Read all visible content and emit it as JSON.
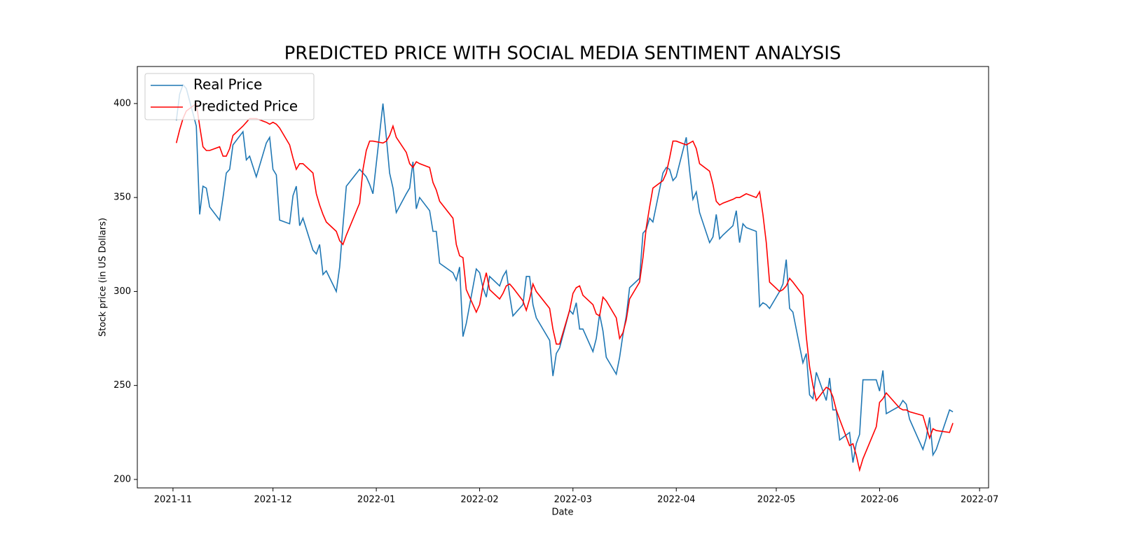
{
  "chart_data": {
    "type": "line",
    "title": "PREDICTED PRICE WITH SOCIAL MEDIA SENTIMENT ANALYSIS",
    "xlabel": "Date",
    "ylabel": "Stock price (in US Dollars)",
    "x": [
      1,
      2,
      3,
      4,
      7,
      8,
      9,
      10,
      11,
      14,
      15,
      16,
      17,
      18,
      21,
      22,
      23,
      25,
      28,
      29,
      30,
      31,
      32,
      35,
      36,
      37,
      38,
      39,
      42,
      43,
      44,
      45,
      46,
      49,
      50,
      51,
      52,
      56,
      57,
      58,
      59,
      60,
      63,
      64,
      65,
      66,
      67,
      70,
      71,
      72,
      73,
      74,
      77,
      78,
      79,
      80,
      84,
      85,
      86,
      87,
      88,
      91,
      92,
      93,
      94,
      95,
      98,
      99,
      100,
      101,
      102,
      105,
      106,
      107,
      108,
      109,
      113,
      114,
      115,
      116,
      119,
      120,
      121,
      122,
      123,
      126,
      127,
      128,
      129,
      130,
      133,
      134,
      135,
      136,
      137,
      140,
      141,
      142,
      143,
      144,
      147,
      148,
      149,
      150,
      151,
      154,
      155,
      156,
      157,
      158,
      161,
      162,
      163,
      164,
      165,
      168,
      169,
      170,
      171,
      172,
      175,
      176,
      177,
      178,
      179,
      182,
      183,
      184,
      185,
      186,
      189,
      190,
      191,
      192,
      193,
      196,
      197,
      198,
      199,
      200,
      203,
      204,
      205,
      206,
      207,
      211,
      212,
      213,
      214,
      218,
      219,
      220,
      221,
      225,
      226,
      227,
      228,
      229,
      233,
      234
    ],
    "series": [
      {
        "name": "Real Price",
        "color": "#1f77b4",
        "values": [
          391,
          405,
          410,
          408,
          388,
          341,
          356,
          355,
          345,
          338,
          350,
          363,
          365,
          378,
          385,
          370,
          372,
          361,
          379,
          382,
          365,
          362,
          338,
          336,
          351,
          356,
          335,
          339,
          322,
          320,
          325,
          309,
          311,
          300,
          313,
          335,
          356,
          365,
          363,
          361,
          357,
          352,
          400,
          382,
          363,
          355,
          342,
          352,
          355,
          369,
          344,
          350,
          343,
          332,
          332,
          315,
          310,
          306,
          313,
          276,
          283,
          312,
          310,
          302,
          297,
          308,
          303,
          308,
          311,
          298,
          287,
          293,
          308,
          308,
          293,
          286,
          274,
          255,
          267,
          270,
          290,
          288,
          294,
          280,
          280,
          268,
          275,
          288,
          279,
          265,
          256,
          265,
          277,
          287,
          302,
          307,
          331,
          333,
          339,
          337,
          363,
          366,
          365,
          359,
          361,
          382,
          364,
          349,
          353,
          342,
          326,
          329,
          341,
          328,
          330,
          335,
          343,
          326,
          336,
          334,
          332,
          292,
          294,
          293,
          291,
          300,
          304,
          317,
          291,
          289,
          262,
          267,
          245,
          243,
          257,
          242,
          254,
          237,
          237,
          221,
          225,
          209,
          219,
          224,
          253,
          253,
          247,
          258,
          235,
          239,
          242,
          240,
          232,
          216,
          222,
          233,
          213,
          216,
          237,
          236
        ]
      },
      {
        "name": "Predicted Price",
        "color": "#ff0000",
        "values": [
          379,
          386,
          392,
          396,
          400,
          388,
          377,
          375,
          375,
          377,
          372,
          372,
          376,
          383,
          388,
          390,
          392,
          392,
          390,
          389,
          390,
          389,
          387,
          378,
          371,
          365,
          368,
          368,
          363,
          352,
          346,
          341,
          337,
          332,
          327,
          325,
          330,
          347,
          365,
          375,
          380,
          380,
          379,
          380,
          383,
          388,
          382,
          374,
          368,
          366,
          369,
          368,
          366,
          358,
          354,
          348,
          339,
          325,
          319,
          318,
          301,
          289,
          293,
          303,
          310,
          301,
          296,
          299,
          303,
          304,
          302,
          295,
          290,
          296,
          304,
          300,
          291,
          280,
          272,
          272,
          290,
          299,
          302,
          303,
          298,
          293,
          288,
          287,
          297,
          295,
          286,
          275,
          278,
          285,
          296,
          305,
          318,
          334,
          345,
          355,
          359,
          363,
          371,
          380,
          380,
          378,
          379,
          380,
          376,
          368,
          364,
          357,
          348,
          346,
          347,
          349,
          350,
          350,
          351,
          352,
          350,
          353,
          341,
          326,
          305,
          300,
          301,
          303,
          307,
          305,
          298,
          276,
          260,
          250,
          242,
          249,
          248,
          244,
          237,
          232,
          218,
          219,
          213,
          205,
          211,
          228,
          241,
          243,
          246,
          238,
          237,
          237,
          236,
          234,
          228,
          222,
          227,
          226,
          225,
          230
        ]
      }
    ],
    "xlim": [
      -10.7,
      244.7
    ],
    "xticks": [
      {
        "value": 0,
        "label": "2021-11"
      },
      {
        "value": 30,
        "label": "2021-12"
      },
      {
        "value": 61,
        "label": "2022-01"
      },
      {
        "value": 92,
        "label": "2022-02"
      },
      {
        "value": 120,
        "label": "2022-03"
      },
      {
        "value": 151,
        "label": "2022-04"
      },
      {
        "value": 181,
        "label": "2022-05"
      },
      {
        "value": 212,
        "label": "2022-06"
      },
      {
        "value": 242,
        "label": "2022-07"
      }
    ],
    "ylim": [
      195.5,
      419.7
    ],
    "yticks": [
      200,
      250,
      300,
      350,
      400
    ],
    "legend": "upper-left",
    "grid": false
  }
}
